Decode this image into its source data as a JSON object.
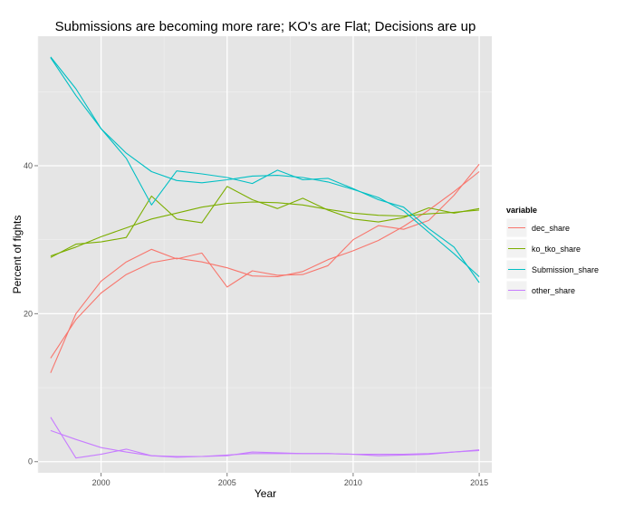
{
  "chart_data": {
    "type": "line",
    "title": "Submissions are becoming more rare; KO's are Flat; Decisions are up",
    "xlabel": "Year",
    "ylabel": "Percent of fights",
    "xlim": [
      1997.5,
      2015.5
    ],
    "ylim": [
      -1.5,
      57.5
    ],
    "x_ticks": [
      2000,
      2005,
      2010,
      2015
    ],
    "y_ticks": [
      0,
      20,
      40
    ],
    "grid": true,
    "smoothed_trend_lines": true,
    "legend": {
      "title": "variable",
      "placement": "right"
    },
    "x": [
      1998,
      1999,
      2000,
      2001,
      2002,
      2003,
      2004,
      2005,
      2006,
      2007,
      2008,
      2009,
      2010,
      2011,
      2012,
      2013,
      2014,
      2015
    ],
    "series": [
      {
        "name": "dec_share",
        "color": "#F8766D",
        "values": [
          12.0,
          20.0,
          24.4,
          27.0,
          28.7,
          27.4,
          28.2,
          23.6,
          25.8,
          25.2,
          25.3,
          26.5,
          30.0,
          31.9,
          31.4,
          32.6,
          36.0,
          40.2
        ],
        "trend": [
          14.0,
          19.2,
          22.8,
          25.3,
          26.9,
          27.5,
          27.0,
          26.2,
          25.1,
          25.0,
          25.7,
          27.3,
          28.5,
          29.9,
          31.8,
          34.0,
          36.5,
          39.2
        ]
      },
      {
        "name": "ko_tko_share",
        "color": "#7CAE00",
        "values": [
          27.6,
          29.4,
          29.7,
          30.3,
          35.9,
          32.8,
          32.3,
          37.2,
          35.4,
          34.2,
          35.6,
          34.0,
          32.8,
          32.4,
          33.0,
          34.3,
          33.6,
          34.2
        ],
        "trend": [
          27.8,
          29.0,
          30.4,
          31.6,
          32.8,
          33.6,
          34.4,
          34.9,
          35.1,
          35.0,
          34.7,
          34.1,
          33.6,
          33.3,
          33.2,
          33.5,
          33.7,
          34.0
        ]
      },
      {
        "name": "Submission_share",
        "color": "#00BFC4",
        "values": [
          54.7,
          50.4,
          45.0,
          41.0,
          34.7,
          39.3,
          38.9,
          38.4,
          37.6,
          39.4,
          38.1,
          38.3,
          36.9,
          35.4,
          34.4,
          31.5,
          29.0,
          24.2
        ],
        "trend": [
          54.6,
          49.5,
          45.0,
          41.7,
          39.2,
          38.0,
          37.7,
          38.1,
          38.6,
          38.7,
          38.4,
          37.8,
          36.8,
          35.7,
          33.9,
          31.0,
          28.1,
          25.0
        ]
      },
      {
        "name": "other_share",
        "color": "#C77CFF",
        "values": [
          6.0,
          0.5,
          1.0,
          1.7,
          0.8,
          0.7,
          0.7,
          0.8,
          1.3,
          1.2,
          1.1,
          1.1,
          1.0,
          0.8,
          0.9,
          1.0,
          1.3,
          1.6
        ],
        "trend": [
          4.2,
          3.0,
          1.9,
          1.3,
          0.8,
          0.6,
          0.7,
          0.9,
          1.1,
          1.1,
          1.1,
          1.1,
          1.0,
          1.0,
          1.0,
          1.1,
          1.3,
          1.5
        ]
      }
    ]
  }
}
